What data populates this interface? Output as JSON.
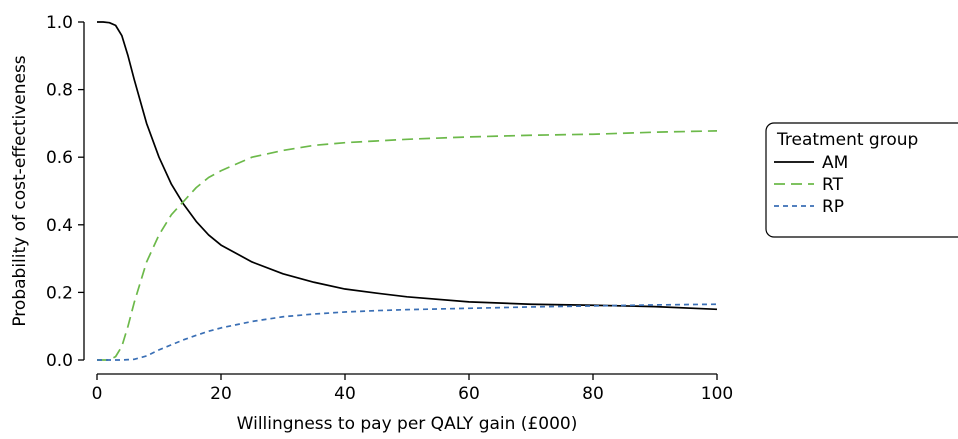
{
  "chart_data": {
    "type": "line",
    "title": "",
    "xlabel": "Willingness to pay per QALY gain (£000)",
    "ylabel": "Probability of cost-effectiveness",
    "xlim": [
      0,
      100
    ],
    "ylim": [
      0,
      1
    ],
    "xticks": [
      0,
      20,
      40,
      60,
      80,
      100
    ],
    "yticks": [
      0.0,
      0.2,
      0.4,
      0.6,
      0.8,
      1.0
    ],
    "xtick_labels": [
      "0",
      "20",
      "40",
      "60",
      "80",
      "100"
    ],
    "ytick_labels": [
      "0.0",
      "0.2",
      "0.4",
      "0.6",
      "0.8",
      "1.0"
    ],
    "grid": false,
    "legend": {
      "title": "Treatment group",
      "placement": "right"
    },
    "x": [
      0,
      1,
      2,
      3,
      4,
      5,
      6,
      8,
      10,
      12,
      14,
      16,
      18,
      20,
      25,
      30,
      35,
      40,
      45,
      50,
      60,
      70,
      80,
      90,
      100
    ],
    "series": [
      {
        "name": "AM",
        "color": "#000000",
        "dash": "solid",
        "values": [
          1.0,
          1.0,
          0.998,
          0.99,
          0.96,
          0.9,
          0.83,
          0.7,
          0.6,
          0.52,
          0.46,
          0.41,
          0.37,
          0.34,
          0.29,
          0.255,
          0.23,
          0.21,
          0.198,
          0.187,
          0.172,
          0.165,
          0.162,
          0.158,
          0.15
        ]
      },
      {
        "name": "RT",
        "color": "#6cb94a",
        "dash": "long",
        "values": [
          0.0,
          0.0,
          0.0,
          0.01,
          0.04,
          0.1,
          0.17,
          0.29,
          0.37,
          0.43,
          0.47,
          0.51,
          0.54,
          0.56,
          0.6,
          0.62,
          0.635,
          0.643,
          0.648,
          0.653,
          0.66,
          0.665,
          0.668,
          0.674,
          0.678
        ]
      },
      {
        "name": "RP",
        "color": "#3a6fb5",
        "dash": "short",
        "values": [
          0.0,
          0.0,
          0.0,
          0.0,
          0.0,
          0.001,
          0.002,
          0.012,
          0.03,
          0.045,
          0.06,
          0.073,
          0.085,
          0.095,
          0.114,
          0.128,
          0.136,
          0.142,
          0.146,
          0.149,
          0.153,
          0.157,
          0.16,
          0.163,
          0.165
        ]
      }
    ]
  }
}
